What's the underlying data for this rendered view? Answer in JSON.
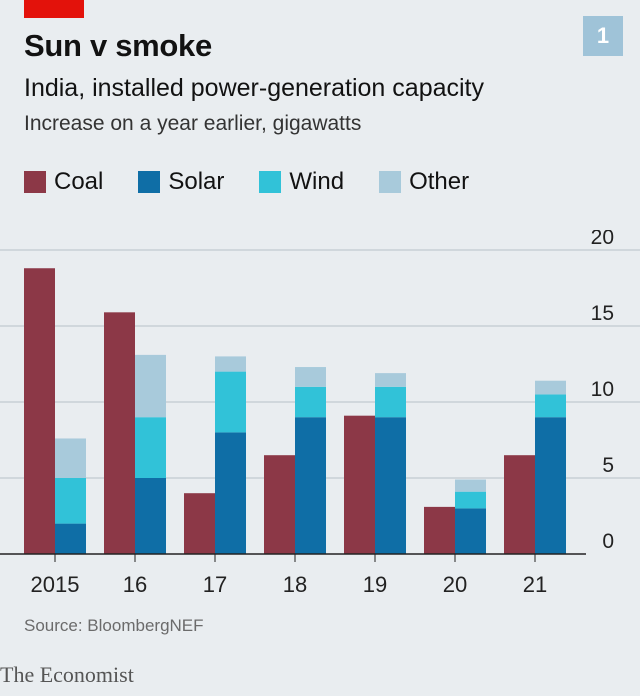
{
  "header": {
    "title": "Sun v smoke",
    "subtitle": "India, installed power-generation capacity",
    "unit": "Increase on a year earlier, gigawatts",
    "badge": "1"
  },
  "legend": [
    {
      "label": "Coal",
      "color": "#8c3847"
    },
    {
      "label": "Solar",
      "color": "#0f6ea6"
    },
    {
      "label": "Wind",
      "color": "#31c2d8"
    },
    {
      "label": "Other",
      "color": "#a8cadb"
    }
  ],
  "footer": {
    "source": "Source: BloombergNEF",
    "brand": "The Economist"
  },
  "chart_data": {
    "type": "bar",
    "categories": [
      "2015",
      "16",
      "17",
      "18",
      "19",
      "20",
      "21"
    ],
    "ylim": [
      0,
      20
    ],
    "yticks": [
      0,
      5,
      10,
      15,
      20
    ],
    "grid": true,
    "y_axis_side": "right",
    "coal": {
      "name": "Coal",
      "values": [
        18.8,
        15.9,
        4.0,
        6.5,
        9.1,
        3.1,
        6.5
      ]
    },
    "stacked_series": [
      {
        "name": "Solar",
        "values": [
          2.0,
          5.0,
          8.0,
          9.0,
          9.0,
          3.0,
          9.0
        ]
      },
      {
        "name": "Wind",
        "values": [
          3.0,
          4.0,
          4.0,
          2.0,
          2.0,
          1.1,
          1.5
        ]
      },
      {
        "name": "Other",
        "values": [
          2.6,
          4.1,
          1.0,
          1.3,
          0.9,
          0.8,
          0.9
        ]
      }
    ]
  }
}
